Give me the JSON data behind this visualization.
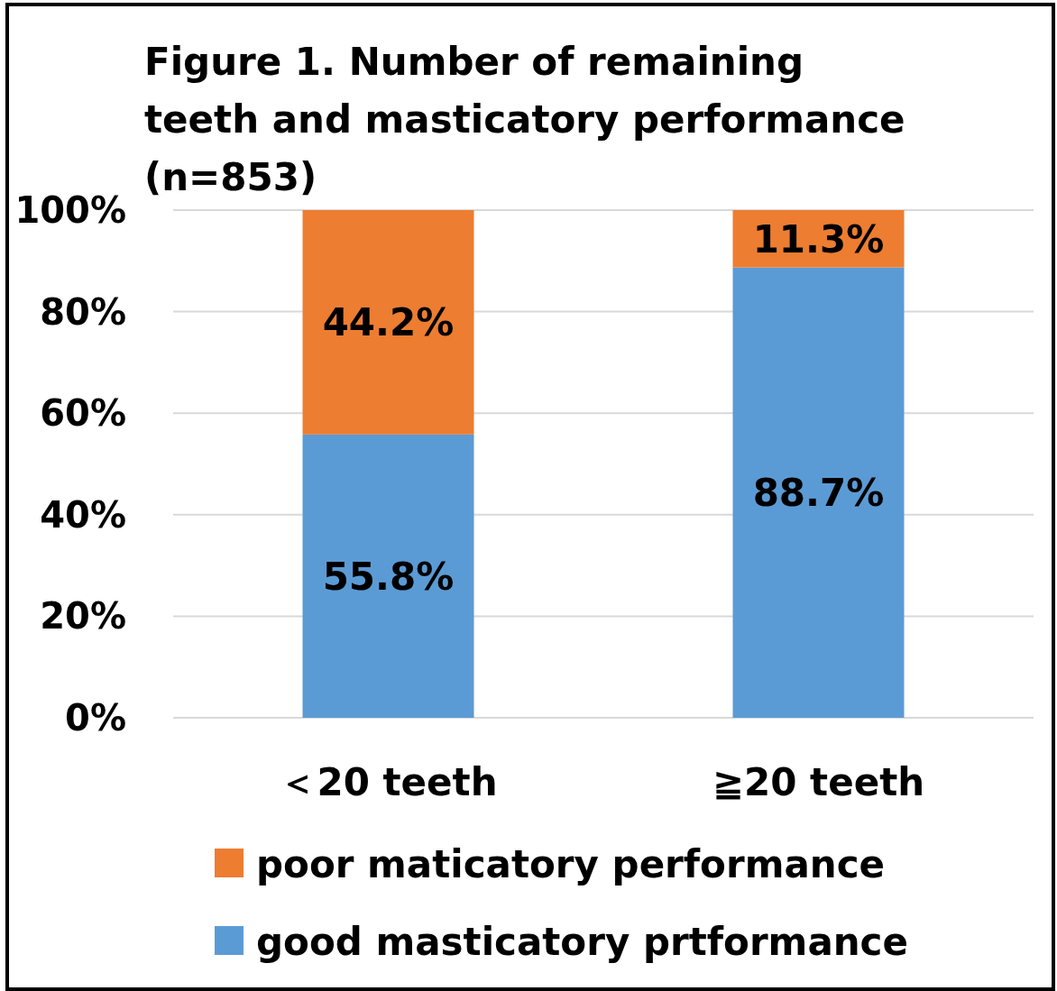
{
  "chart_data": {
    "type": "bar",
    "title": "Figure 1. Number of remaining teeth and masticatory performance (n=853)",
    "categories": [
      "＜20 teeth",
      "≧20 teeth"
    ],
    "stacked": true,
    "series": [
      {
        "name": "good masticatory prtformance",
        "color": "#5b9bd5",
        "values": [
          55.8,
          88.7
        ],
        "value_labels": [
          "55.8%",
          "88.7%"
        ]
      },
      {
        "name": "poor maticatory performance",
        "color": "#ed7d31",
        "values": [
          44.2,
          11.3
        ],
        "value_labels": [
          "44.2%",
          "11.3%"
        ]
      }
    ],
    "ylim": [
      0,
      100
    ],
    "yticks": [
      {
        "value": 0,
        "label": "0%"
      },
      {
        "value": 20,
        "label": "20%"
      },
      {
        "value": 40,
        "label": "40%"
      },
      {
        "value": 60,
        "label": "60%"
      },
      {
        "value": 80,
        "label": "80%"
      },
      {
        "value": 100,
        "label": "100%"
      }
    ],
    "grid": "y",
    "legend": "bottom"
  }
}
